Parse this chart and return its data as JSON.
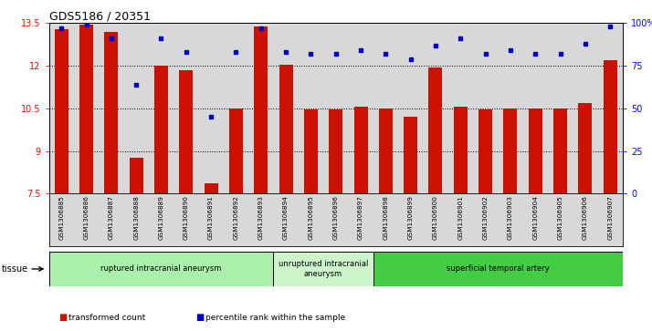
{
  "title": "GDS5186 / 20351",
  "samples": [
    "GSM1306885",
    "GSM1306886",
    "GSM1306887",
    "GSM1306888",
    "GSM1306889",
    "GSM1306890",
    "GSM1306891",
    "GSM1306892",
    "GSM1306893",
    "GSM1306894",
    "GSM1306895",
    "GSM1306896",
    "GSM1306897",
    "GSM1306898",
    "GSM1306899",
    "GSM1306900",
    "GSM1306901",
    "GSM1306902",
    "GSM1306903",
    "GSM1306904",
    "GSM1306905",
    "GSM1306906",
    "GSM1306907"
  ],
  "transformed_count": [
    13.3,
    13.45,
    13.2,
    8.75,
    12.0,
    11.85,
    7.85,
    10.5,
    13.4,
    12.05,
    10.45,
    10.45,
    10.55,
    10.5,
    10.2,
    11.95,
    10.55,
    10.45,
    10.5,
    10.5,
    10.5,
    10.7,
    12.2
  ],
  "percentile_rank": [
    97,
    99,
    91,
    64,
    91,
    83,
    45,
    83,
    97,
    83,
    82,
    82,
    84,
    82,
    79,
    87,
    91,
    82,
    84,
    82,
    82,
    88,
    98
  ],
  "ylim_left": [
    7.5,
    13.5
  ],
  "ylim_right": [
    0,
    100
  ],
  "yticks_left": [
    7.5,
    9.0,
    10.5,
    12.0,
    13.5
  ],
  "ytick_labels_left": [
    "7.5",
    "9",
    "10.5",
    "12",
    "13.5"
  ],
  "yticks_right": [
    0,
    25,
    50,
    75,
    100
  ],
  "ytick_labels_right": [
    "0",
    "25",
    "50",
    "75",
    "100%"
  ],
  "groups": [
    {
      "label": "ruptured intracranial aneurysm",
      "start": 0,
      "end": 9,
      "color": "#aaf0aa"
    },
    {
      "label": "unruptured intracranial\naneurysm",
      "start": 9,
      "end": 13,
      "color": "#ccf5cc"
    },
    {
      "label": "superficial temporal artery",
      "start": 13,
      "end": 23,
      "color": "#44cc44"
    }
  ],
  "bar_color": "#cc1100",
  "dot_color": "#0000cc",
  "bar_bottom": 7.5,
  "tissue_label": "tissue",
  "legend_items": [
    {
      "color": "#cc1100",
      "label": "transformed count"
    },
    {
      "color": "#0000cc",
      "label": "percentile rank within the sample"
    }
  ],
  "bg_color": "#d8d8d8",
  "title_fontsize": 9,
  "tick_fontsize": 7,
  "label_fontsize": 6
}
